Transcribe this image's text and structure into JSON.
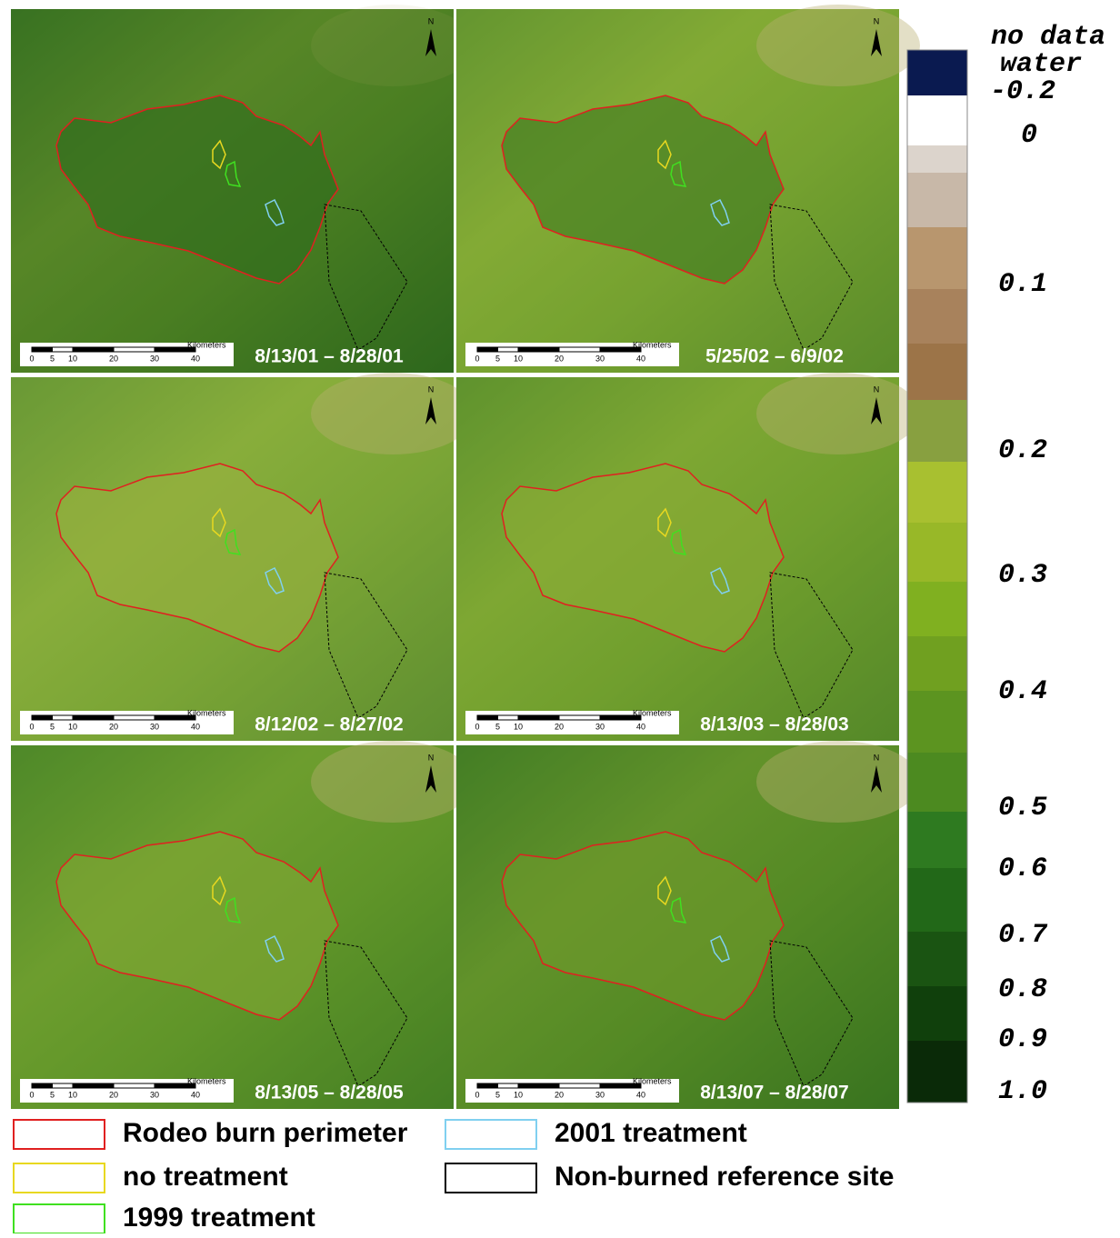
{
  "panels": [
    {
      "date": "8/13/01 – 8/28/01"
    },
    {
      "date": "5/25/02 – 6/9/02"
    },
    {
      "date": "8/12/02 – 8/27/02"
    },
    {
      "date": "8/13/03 – 8/28/03"
    },
    {
      "date": "8/13/05 – 8/28/05"
    },
    {
      "date": "8/13/07 – 8/28/07"
    }
  ],
  "scale_bar": {
    "unit": "Kilometers",
    "ticks": [
      0,
      5,
      10,
      20,
      30,
      40
    ]
  },
  "north_label": "N",
  "colorbar": {
    "labels": [
      "no data",
      "water",
      -0.2,
      0,
      0.1,
      0.2,
      0.3,
      0.4,
      0.5,
      0.6,
      0.7,
      0.8,
      0.9,
      {
        "value": 1,
        "label": "1.0"
      }
    ],
    "colors": [
      "#0a1a50",
      "#ffffff",
      "#dcd4cc",
      "#c8b8a8",
      "#b8966e",
      "#a8825c",
      "#9c7448",
      "#88a040",
      "#a8c030",
      "#98b828",
      "#80b020",
      "#70a020",
      "#5c9420",
      "#4c8a20",
      "#2e7a20",
      "#226818",
      "#1a5412",
      "#10400c",
      "#0a2a08"
    ]
  },
  "legend": [
    {
      "label": "Rodeo burn perimeter",
      "color": "#e02020"
    },
    {
      "label": "no treatment",
      "color": "#e8d820"
    },
    {
      "label": "1999 treatment",
      "color": "#40e020"
    },
    {
      "label": "2001 treatment",
      "color": "#80d0f0"
    },
    {
      "label": "Non-burned reference site",
      "color": "#000000"
    }
  ]
}
